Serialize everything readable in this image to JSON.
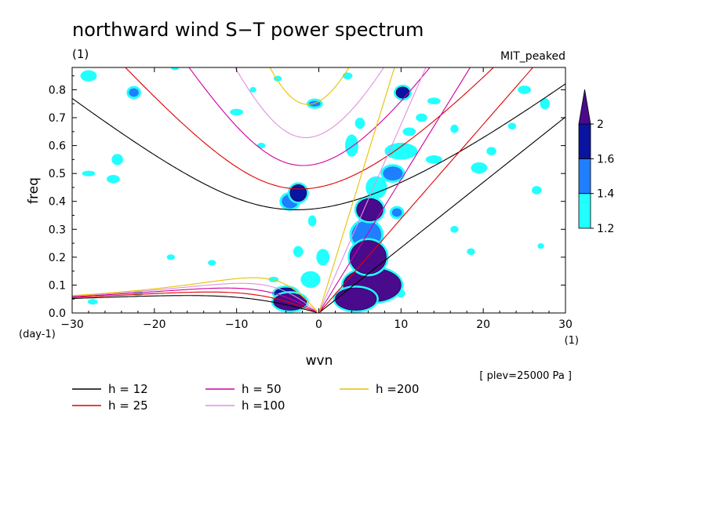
{
  "chart_data": {
    "type": "heatmap",
    "title": "northward wind S−T power spectrum",
    "units_left": "(1)",
    "model_label": "MIT_peaked",
    "xlabel": "wvn",
    "ylabel": "freq",
    "x_unit": "(1)",
    "y_unit": "(day-1)",
    "footnote": "[ plev=25000 Pa ]",
    "xlim": [
      -30,
      30
    ],
    "ylim": [
      0,
      0.88
    ],
    "x_ticks": [
      -30,
      -20,
      -10,
      0,
      10,
      20,
      30
    ],
    "y_ticks": [
      0.0,
      0.1,
      0.2,
      0.3,
      0.4,
      0.5,
      0.6,
      0.7,
      0.8
    ],
    "x_tick_labels": [
      "−30",
      "−20",
      "−10",
      "0",
      "10",
      "20",
      "30"
    ],
    "y_tick_labels": [
      "0.0",
      "0.1",
      "0.2",
      "0.3",
      "0.4",
      "0.5",
      "0.6",
      "0.7",
      "0.8"
    ],
    "colorbar": {
      "levels": [
        1.2,
        1.4,
        1.6,
        2
      ],
      "labels": [
        "1.2",
        "1.4",
        "1.6",
        "2"
      ],
      "colors": [
        "#22ffff",
        "#1f7fff",
        "#0a14a0",
        "#4a0a8c"
      ]
    },
    "dispersion_curves": [
      {
        "name": "h = 12",
        "h": 12,
        "color": "#000000"
      },
      {
        "name": "h = 25",
        "h": 25,
        "color": "#e00000"
      },
      {
        "name": "h = 50",
        "h": 50,
        "color": "#d000a0"
      },
      {
        "name": "h =100",
        "h": 100,
        "color": "#e090e0"
      },
      {
        "name": "h =200",
        "h": 200,
        "color": "#e8c000"
      }
    ],
    "spectral_blobs": [
      {
        "x": 6.5,
        "y": 0.1,
        "rx": 3.5,
        "ry": 0.06,
        "level": 3
      },
      {
        "x": 6,
        "y": 0.2,
        "rx": 2.2,
        "ry": 0.06,
        "level": 3
      },
      {
        "x": 6.2,
        "y": 0.37,
        "rx": 1.6,
        "ry": 0.04,
        "level": 3
      },
      {
        "x": 5.8,
        "y": 0.28,
        "rx": 1.8,
        "ry": 0.05,
        "level": 1
      },
      {
        "x": 4.5,
        "y": 0.05,
        "rx": 2.5,
        "ry": 0.04,
        "level": 3
      },
      {
        "x": -3.5,
        "y": 0.04,
        "rx": 2,
        "ry": 0.03,
        "level": 3
      },
      {
        "x": -4,
        "y": 0.07,
        "rx": 1.4,
        "ry": 0.02,
        "level": 2
      },
      {
        "x": -2.5,
        "y": 0.43,
        "rx": 1,
        "ry": 0.03,
        "level": 2
      },
      {
        "x": -3.5,
        "y": 0.4,
        "rx": 1,
        "ry": 0.025,
        "level": 1
      },
      {
        "x": 10.2,
        "y": 0.79,
        "rx": 0.8,
        "ry": 0.02,
        "level": 2
      },
      {
        "x": -22.5,
        "y": 0.79,
        "rx": 0.6,
        "ry": 0.015,
        "level": 1
      },
      {
        "x": -24.5,
        "y": 0.55,
        "rx": 0.7,
        "ry": 0.02,
        "level": 0
      },
      {
        "x": 4,
        "y": 0.6,
        "rx": 0.8,
        "ry": 0.04,
        "level": 0
      },
      {
        "x": 10,
        "y": 0.58,
        "rx": 2,
        "ry": 0.03,
        "level": 0
      },
      {
        "x": 9,
        "y": 0.5,
        "rx": 1.2,
        "ry": 0.025,
        "level": 1
      },
      {
        "x": -1,
        "y": 0.12,
        "rx": 1.2,
        "ry": 0.03,
        "level": 0
      },
      {
        "x": 0.5,
        "y": 0.2,
        "rx": 0.8,
        "ry": 0.03,
        "level": 0
      },
      {
        "x": -2.5,
        "y": 0.22,
        "rx": 0.6,
        "ry": 0.02,
        "level": 0
      },
      {
        "x": -28,
        "y": 0.85,
        "rx": 1,
        "ry": 0.02,
        "level": 0
      },
      {
        "x": -28,
        "y": 0.5,
        "rx": 0.8,
        "ry": 0.01,
        "level": 0
      },
      {
        "x": -25,
        "y": 0.48,
        "rx": 0.8,
        "ry": 0.015,
        "level": 0
      },
      {
        "x": -27.5,
        "y": 0.04,
        "rx": 0.6,
        "ry": 0.01,
        "level": 0
      },
      {
        "x": -22,
        "y": 0.07,
        "rx": 0.6,
        "ry": 0.01,
        "level": 0
      },
      {
        "x": -5.5,
        "y": 0.12,
        "rx": 0.6,
        "ry": 0.01,
        "level": 0
      },
      {
        "x": -0.8,
        "y": 0.33,
        "rx": 0.5,
        "ry": 0.02,
        "level": 0
      },
      {
        "x": 12.5,
        "y": 0.7,
        "rx": 0.7,
        "ry": 0.015,
        "level": 0
      },
      {
        "x": 14,
        "y": 0.55,
        "rx": 1,
        "ry": 0.015,
        "level": 0
      },
      {
        "x": 19.5,
        "y": 0.52,
        "rx": 1,
        "ry": 0.02,
        "level": 0
      },
      {
        "x": 21,
        "y": 0.58,
        "rx": 0.6,
        "ry": 0.015,
        "level": 0
      },
      {
        "x": 25,
        "y": 0.8,
        "rx": 0.8,
        "ry": 0.015,
        "level": 0
      },
      {
        "x": 26.5,
        "y": 0.44,
        "rx": 0.6,
        "ry": 0.015,
        "level": 0
      },
      {
        "x": 27.5,
        "y": 0.75,
        "rx": 0.6,
        "ry": 0.02,
        "level": 0
      },
      {
        "x": 16.5,
        "y": 0.66,
        "rx": 0.5,
        "ry": 0.015,
        "level": 0
      },
      {
        "x": 16.5,
        "y": 0.3,
        "rx": 0.5,
        "ry": 0.012,
        "level": 0
      },
      {
        "x": 18.5,
        "y": 0.22,
        "rx": 0.5,
        "ry": 0.012,
        "level": 0
      },
      {
        "x": -18,
        "y": 0.2,
        "rx": 0.5,
        "ry": 0.01,
        "level": 0
      },
      {
        "x": -13,
        "y": 0.18,
        "rx": 0.5,
        "ry": 0.01,
        "level": 0
      },
      {
        "x": -10,
        "y": 0.72,
        "rx": 0.8,
        "ry": 0.012,
        "level": 0
      },
      {
        "x": -7,
        "y": 0.6,
        "rx": 0.5,
        "ry": 0.01,
        "level": 0
      },
      {
        "x": 5,
        "y": 0.68,
        "rx": 0.6,
        "ry": 0.02,
        "level": 0
      },
      {
        "x": 3.5,
        "y": 0.85,
        "rx": 0.6,
        "ry": 0.012,
        "level": 0
      },
      {
        "x": 11,
        "y": 0.65,
        "rx": 0.8,
        "ry": 0.015,
        "level": 0
      },
      {
        "x": 14,
        "y": 0.76,
        "rx": 0.8,
        "ry": 0.012,
        "level": 0
      },
      {
        "x": 23.5,
        "y": 0.67,
        "rx": 0.5,
        "ry": 0.012,
        "level": 0
      },
      {
        "x": -17.5,
        "y": 0.88,
        "rx": 0.5,
        "ry": 0.01,
        "level": 0
      },
      {
        "x": -5,
        "y": 0.84,
        "rx": 0.5,
        "ry": 0.01,
        "level": 0
      },
      {
        "x": -8,
        "y": 0.8,
        "rx": 0.4,
        "ry": 0.01,
        "level": 0
      },
      {
        "x": 27,
        "y": 0.24,
        "rx": 0.4,
        "ry": 0.01,
        "level": 0
      },
      {
        "x": 10,
        "y": 0.07,
        "rx": 0.5,
        "ry": 0.015,
        "level": 0
      },
      {
        "x": -0.5,
        "y": 0.75,
        "rx": 0.7,
        "ry": 0.01,
        "level": 1
      },
      {
        "x": 7,
        "y": 0.45,
        "rx": 1.3,
        "ry": 0.04,
        "level": 0
      },
      {
        "x": 9.5,
        "y": 0.36,
        "rx": 0.6,
        "ry": 0.015,
        "level": 1
      }
    ]
  }
}
